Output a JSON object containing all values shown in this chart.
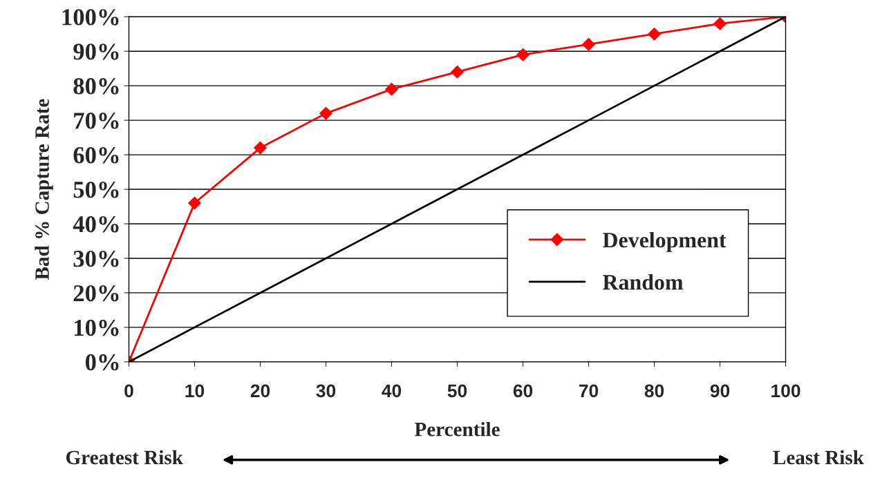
{
  "chart_data": {
    "type": "line",
    "xlabel": "Percentile",
    "ylabel": "Bad % Capture Rate",
    "x": [
      0,
      10,
      20,
      30,
      40,
      50,
      60,
      70,
      80,
      90,
      100
    ],
    "series": [
      {
        "name": "Development",
        "color": "#ff0000",
        "marker": "diamond",
        "values": [
          0,
          46,
          62,
          72,
          79,
          84,
          89,
          92,
          95,
          98,
          100
        ]
      },
      {
        "name": "Random",
        "color": "#000000",
        "marker": "none",
        "values": [
          0,
          10,
          20,
          30,
          40,
          50,
          60,
          70,
          80,
          90,
          100
        ]
      }
    ],
    "xlim": [
      0,
      100
    ],
    "xticks": [
      0,
      10,
      20,
      30,
      40,
      50,
      60,
      70,
      80,
      90,
      100
    ],
    "ylim": [
      0,
      100
    ],
    "yticks": [
      {
        "value": 0,
        "label": "0%"
      },
      {
        "value": 10,
        "label": "10%"
      },
      {
        "value": 20,
        "label": "20%"
      },
      {
        "value": 30,
        "label": "30%"
      },
      {
        "value": 40,
        "label": "40%"
      },
      {
        "value": 50,
        "label": "50%"
      },
      {
        "value": 60,
        "label": "60%"
      },
      {
        "value": 70,
        "label": "70%"
      },
      {
        "value": 80,
        "label": "80%"
      },
      {
        "value": 90,
        "label": "90%"
      },
      {
        "value": 100,
        "label": "100%"
      }
    ],
    "grid": "y",
    "legend": "lower right",
    "annotations": [
      "Greatest Risk",
      "Least Risk"
    ]
  }
}
